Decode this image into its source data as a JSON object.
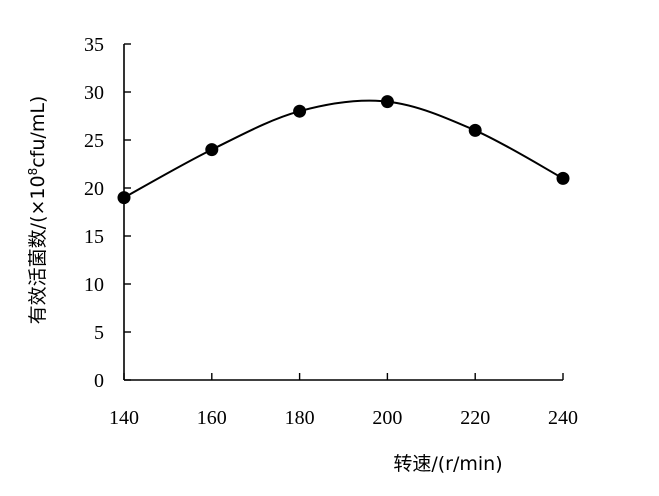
{
  "chart_data": {
    "type": "scatter",
    "title": "",
    "xlabel": "转速/(r/min)",
    "ylabel": "有效活菌数/(×10⁸cfu/mL)",
    "ylabel_prefix": "有效活菌数/(×10",
    "ylabel_sup": "8",
    "ylabel_suffix": "cfu/mL)",
    "xlim": [
      140,
      240
    ],
    "ylim": [
      0,
      35
    ],
    "xticks": [
      140,
      160,
      180,
      200,
      220,
      240
    ],
    "yticks": [
      0,
      5,
      10,
      15,
      20,
      25,
      30,
      35
    ],
    "grid": false,
    "legend": "none",
    "smooth_curve": true,
    "marker_color": "#000000",
    "line_color": "#000000",
    "series": [
      {
        "x": [
          140,
          160,
          180,
          200,
          220,
          240
        ],
        "y": [
          19,
          24,
          28,
          29,
          26,
          21
        ]
      }
    ]
  }
}
